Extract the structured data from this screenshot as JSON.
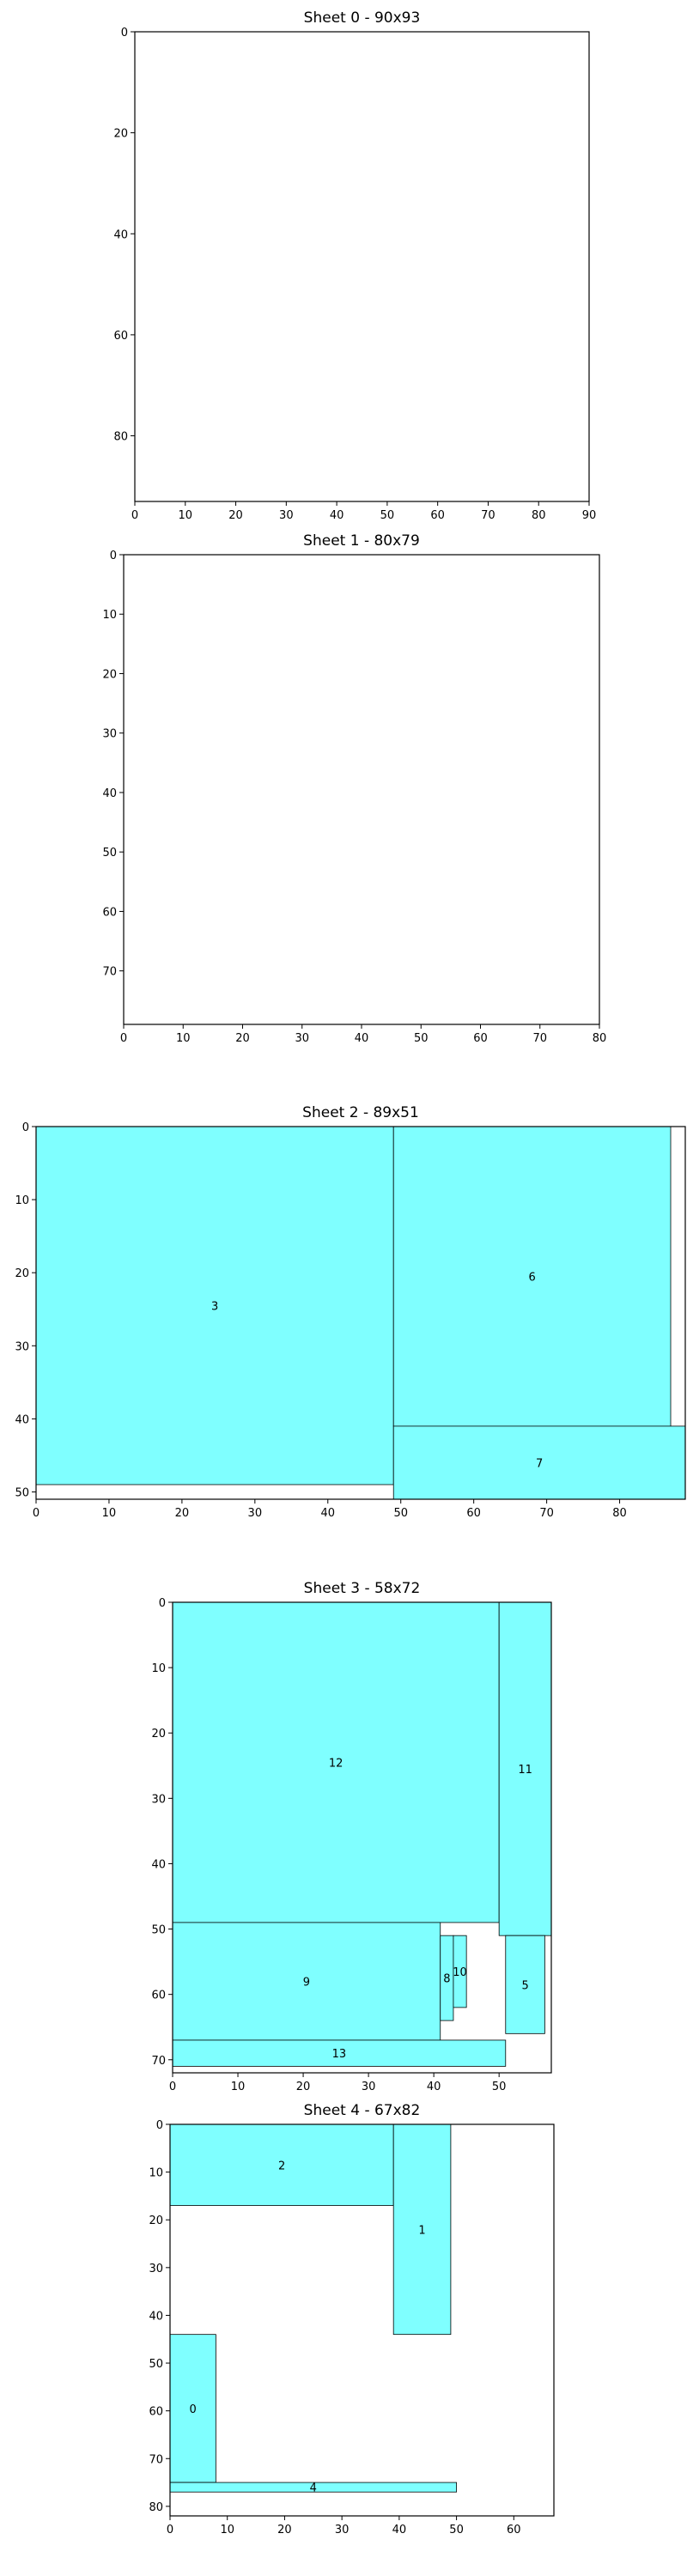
{
  "chart_data": [
    {
      "type": "rectangles",
      "title": "Sheet 0 - 90x93",
      "xlim": [
        0,
        90
      ],
      "ylim": [
        0,
        93
      ],
      "y_inverted": true,
      "xticks": [
        0,
        10,
        20,
        30,
        40,
        50,
        60,
        70,
        80,
        90
      ],
      "yticks": [
        0,
        20,
        40,
        60,
        80
      ],
      "pieces": []
    },
    {
      "type": "rectangles",
      "title": "Sheet 1 - 80x79",
      "xlim": [
        0,
        80
      ],
      "ylim": [
        0,
        79
      ],
      "y_inverted": true,
      "xticks": [
        0,
        10,
        20,
        30,
        40,
        50,
        60,
        70,
        80
      ],
      "yticks": [
        0,
        10,
        20,
        30,
        40,
        50,
        60,
        70
      ],
      "pieces": []
    },
    {
      "type": "rectangles",
      "title": "Sheet 2 - 89x51",
      "xlim": [
        0,
        89
      ],
      "ylim": [
        0,
        51
      ],
      "y_inverted": true,
      "xticks": [
        0,
        10,
        20,
        30,
        40,
        50,
        60,
        70,
        80
      ],
      "yticks": [
        0,
        10,
        20,
        30,
        40,
        50
      ],
      "pieces": [
        {
          "id": "3",
          "x": 0,
          "y": 0,
          "w": 49,
          "h": 49
        },
        {
          "id": "6",
          "x": 49,
          "y": 0,
          "w": 38,
          "h": 41
        },
        {
          "id": "7",
          "x": 49,
          "y": 41,
          "w": 40,
          "h": 10
        }
      ]
    },
    {
      "type": "rectangles",
      "title": "Sheet 3 - 58x72",
      "xlim": [
        0,
        58
      ],
      "ylim": [
        0,
        72
      ],
      "y_inverted": true,
      "xticks": [
        0,
        10,
        20,
        30,
        40,
        50
      ],
      "yticks": [
        0,
        10,
        20,
        30,
        40,
        50,
        60,
        70
      ],
      "pieces": [
        {
          "id": "12",
          "x": 0,
          "y": 0,
          "w": 50,
          "h": 49
        },
        {
          "id": "11",
          "x": 50,
          "y": 0,
          "w": 8,
          "h": 51
        },
        {
          "id": "9",
          "x": 0,
          "y": 49,
          "w": 41,
          "h": 18
        },
        {
          "id": "8",
          "x": 41,
          "y": 51,
          "w": 2,
          "h": 13
        },
        {
          "id": "10",
          "x": 43,
          "y": 51,
          "w": 2,
          "h": 11
        },
        {
          "id": "5",
          "x": 51,
          "y": 51,
          "w": 6,
          "h": 15
        },
        {
          "id": "13",
          "x": 0,
          "y": 67,
          "w": 51,
          "h": 4
        }
      ]
    },
    {
      "type": "rectangles",
      "title": "Sheet 4 - 67x82",
      "xlim": [
        0,
        67
      ],
      "ylim": [
        0,
        82
      ],
      "y_inverted": true,
      "xticks": [
        0,
        10,
        20,
        30,
        40,
        50,
        60
      ],
      "yticks": [
        0,
        10,
        20,
        30,
        40,
        50,
        60,
        70,
        80
      ],
      "pieces": [
        {
          "id": "2",
          "x": 0,
          "y": 0,
          "w": 39,
          "h": 17
        },
        {
          "id": "1",
          "x": 39,
          "y": 0,
          "w": 10,
          "h": 44
        },
        {
          "id": "0",
          "x": 0,
          "y": 44,
          "w": 8,
          "h": 31
        },
        {
          "id": "4",
          "x": 0,
          "y": 75,
          "w": 50,
          "h": 2
        }
      ]
    }
  ],
  "colors": {
    "piece_fill": "#7fffff",
    "piece_edge": "#000000",
    "axes": "#000000"
  }
}
